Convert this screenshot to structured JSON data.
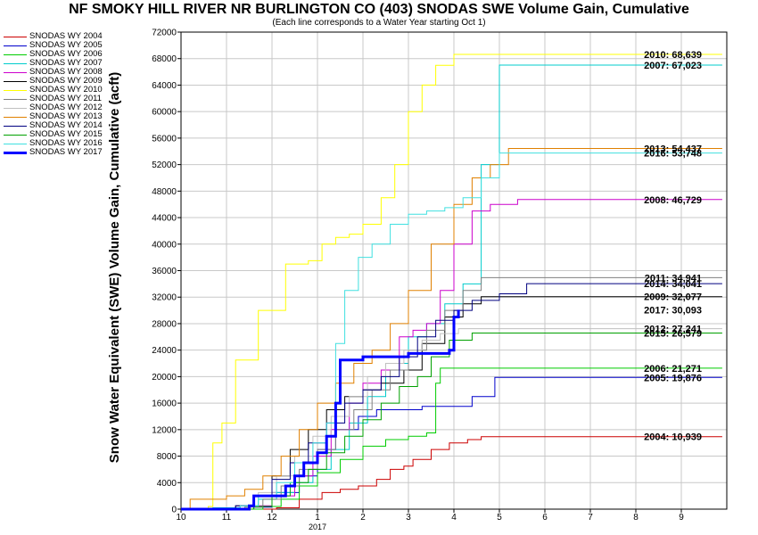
{
  "chart_data": {
    "type": "line",
    "title": "NF SMOKY HILL RIVER NR BURLINGTON CO (403) SNODAS SWE Volume Gain, Cumulative",
    "subtitle": "(Each line corresponds to a Water Year starting Oct 1)",
    "ylabel": "Snow Water Equivalent (SWE) Volume Gain, Cumulative (acft)",
    "xlabel": "",
    "ylim": [
      0,
      72000
    ],
    "yticks": [
      "0",
      "4000",
      "8000",
      "12000",
      "16000",
      "20000",
      "24000",
      "28000",
      "32000",
      "36000",
      "40000",
      "44000",
      "48000",
      "52000",
      "56000",
      "60000",
      "64000",
      "68000",
      "72000"
    ],
    "xlim": [
      0,
      12
    ],
    "xticks": [
      {
        "pos": 0,
        "label": "10"
      },
      {
        "pos": 1,
        "label": "11"
      },
      {
        "pos": 2,
        "label": "12"
      },
      {
        "pos": 3,
        "label": "1"
      },
      {
        "pos": 4,
        "label": "2"
      },
      {
        "pos": 5,
        "label": "3"
      },
      {
        "pos": 6,
        "label": "4"
      },
      {
        "pos": 7,
        "label": "5"
      },
      {
        "pos": 8,
        "label": "6"
      },
      {
        "pos": 9,
        "label": "7"
      },
      {
        "pos": 10,
        "label": "8"
      },
      {
        "pos": 11,
        "label": "9"
      }
    ],
    "year_label": {
      "pos": 3,
      "label": "2017"
    },
    "grid": true,
    "legend_position": "left",
    "series": [
      {
        "name": "SNODAS WY 2004",
        "color": "#cc0000",
        "width": 1,
        "end_label": "2004: 10,939",
        "x": [
          0,
          2.1,
          2.6,
          3.1,
          3.5,
          3.9,
          4.3,
          4.6,
          4.9,
          5.1,
          5.5,
          5.9,
          6.3,
          6.6,
          11.9
        ],
        "y": [
          0,
          200,
          1500,
          2500,
          3000,
          3500,
          4500,
          6000,
          6500,
          7500,
          9000,
          10000,
          10500,
          10939,
          10939
        ]
      },
      {
        "name": "SNODAS WY 2005",
        "color": "#0000cc",
        "width": 1,
        "end_label": "2005: 19,876",
        "x": [
          0,
          1.6,
          2.0,
          2.6,
          3.0,
          3.4,
          3.9,
          4.3,
          4.9,
          5.3,
          5.9,
          6.4,
          6.9,
          11.9
        ],
        "y": [
          0,
          300,
          2500,
          5000,
          9000,
          12000,
          14000,
          15000,
          15000,
          15500,
          15500,
          17000,
          19876,
          19876
        ]
      },
      {
        "name": "SNODAS WY 2006",
        "color": "#00cc00",
        "width": 1,
        "end_label": "2006: 21,271",
        "x": [
          0,
          1.8,
          2.2,
          2.6,
          3.0,
          3.5,
          4.0,
          4.5,
          5.0,
          5.4,
          5.6,
          5.7,
          11.9
        ],
        "y": [
          0,
          400,
          1500,
          3500,
          5500,
          7500,
          9500,
          10500,
          11000,
          11500,
          19000,
          21271,
          21271
        ]
      },
      {
        "name": "SNODAS WY 2007",
        "color": "#00cccc",
        "width": 1,
        "end_label": "2007: 67,023",
        "x": [
          0,
          0.7,
          1.3,
          1.7,
          2.1,
          2.5,
          2.9,
          3.3,
          3.7,
          4.1,
          4.5,
          5.0,
          5.4,
          5.8,
          6.2,
          6.6,
          7.0,
          11.9
        ],
        "y": [
          0,
          200,
          500,
          1500,
          2500,
          4000,
          6000,
          9000,
          13000,
          17000,
          22000,
          26000,
          28000,
          31000,
          34000,
          52000,
          67023,
          67023
        ]
      },
      {
        "name": "SNODAS WY 2008",
        "color": "#cc00cc",
        "width": 1,
        "end_label": "2008: 46,729",
        "x": [
          0,
          1.5,
          2.0,
          2.5,
          2.9,
          3.3,
          3.7,
          4.0,
          4.4,
          4.8,
          5.1,
          5.4,
          5.7,
          6.0,
          6.4,
          6.8,
          7.4,
          11.9
        ],
        "y": [
          0,
          500,
          2000,
          5000,
          8000,
          12000,
          16000,
          19000,
          21000,
          26000,
          27000,
          28000,
          33000,
          40000,
          45000,
          46000,
          46729,
          46729
        ]
      },
      {
        "name": "SNODAS WY 2009",
        "color": "#000000",
        "width": 1,
        "end_label": "2009: 32,077",
        "x": [
          0,
          1.2,
          1.6,
          2.0,
          2.4,
          2.8,
          3.2,
          3.6,
          4.0,
          4.4,
          4.9,
          5.3,
          5.8,
          6.2,
          6.6,
          11.9
        ],
        "y": [
          0,
          500,
          2000,
          5000,
          9000,
          12000,
          15000,
          17000,
          18000,
          19000,
          21000,
          25000,
          29000,
          31000,
          32077,
          32077
        ]
      },
      {
        "name": "SNODAS WY 2010",
        "color": "#ffff00",
        "width": 1,
        "end_label": "2010: 68,639",
        "x": [
          0,
          0.6,
          0.7,
          0.9,
          1.2,
          1.7,
          2.3,
          2.8,
          3.1,
          3.4,
          3.7,
          4.0,
          4.4,
          4.7,
          5.0,
          5.3,
          5.6,
          6.0,
          11.9
        ],
        "y": [
          0,
          400,
          10000,
          13000,
          22500,
          30000,
          37000,
          37500,
          40000,
          41000,
          41500,
          43000,
          47000,
          52000,
          60000,
          64000,
          67000,
          68639,
          68639
        ]
      },
      {
        "name": "SNODAS WY 2011",
        "color": "#808080",
        "width": 1,
        "end_label": "2011: 34,941",
        "x": [
          0,
          1.4,
          1.8,
          2.2,
          2.6,
          3.0,
          3.4,
          3.8,
          4.2,
          4.6,
          5.0,
          5.4,
          5.8,
          6.2,
          6.6,
          11.9
        ],
        "y": [
          0,
          300,
          1500,
          3500,
          6000,
          9000,
          12000,
          15000,
          18000,
          21000,
          24000,
          27000,
          30000,
          33000,
          34941,
          34941
        ]
      },
      {
        "name": "SNODAS WY 2012",
        "color": "#c0c0c0",
        "width": 1,
        "end_label": "2012: 27,241",
        "x": [
          0,
          1.3,
          1.7,
          2.1,
          2.5,
          2.9,
          3.3,
          3.7,
          4.1,
          4.5,
          4.9,
          5.3,
          5.7,
          6.1,
          11.9
        ],
        "y": [
          0,
          500,
          2500,
          5000,
          8000,
          11000,
          14000,
          17000,
          20000,
          22000,
          24000,
          25500,
          26500,
          27241,
          27241
        ]
      },
      {
        "name": "SNODAS WY 2013",
        "color": "#e08000",
        "width": 1,
        "end_label": "2013: 54,437",
        "x": [
          0,
          0.2,
          0.6,
          1.0,
          1.4,
          1.8,
          2.2,
          2.6,
          3.0,
          3.4,
          3.8,
          4.2,
          4.6,
          5.0,
          5.5,
          6.0,
          6.4,
          6.8,
          7.2,
          11.9
        ],
        "y": [
          0,
          1500,
          1500,
          2000,
          3000,
          5000,
          8000,
          12000,
          16000,
          19000,
          22000,
          24000,
          28000,
          33000,
          40000,
          46000,
          50000,
          52000,
          54437,
          54437
        ]
      },
      {
        "name": "SNODAS WY 2014",
        "color": "#000080",
        "width": 1,
        "end_label": "2014: 34,041",
        "x": [
          0,
          1.2,
          1.6,
          2.0,
          2.4,
          2.8,
          3.2,
          3.6,
          4.0,
          4.4,
          4.8,
          5.2,
          5.6,
          6.0,
          6.4,
          7.0,
          7.6,
          11.9
        ],
        "y": [
          0,
          500,
          2000,
          4500,
          7000,
          10000,
          13000,
          16000,
          18000,
          20000,
          23000,
          26000,
          28500,
          30000,
          31500,
          32500,
          34041,
          34041
        ]
      },
      {
        "name": "SNODAS WY 2015",
        "color": "#00a000",
        "width": 1,
        "end_label": "2015: 26,579",
        "x": [
          0,
          1.6,
          2.0,
          2.4,
          2.8,
          3.2,
          3.6,
          4.0,
          4.4,
          4.8,
          5.2,
          5.5,
          5.9,
          6.4,
          11.9
        ],
        "y": [
          0,
          400,
          2000,
          4000,
          6000,
          8500,
          11000,
          13500,
          16000,
          18500,
          20000,
          23000,
          25500,
          26579,
          26579
        ]
      },
      {
        "name": "SNODAS WY 2016",
        "color": "#40e0e0",
        "width": 1,
        "end_label": "2016: 53,748",
        "x": [
          0,
          1.3,
          1.7,
          2.1,
          2.5,
          2.9,
          3.2,
          3.4,
          3.6,
          3.9,
          4.2,
          4.6,
          5.0,
          5.4,
          5.8,
          6.2,
          6.6,
          7.0,
          11.9
        ],
        "y": [
          0,
          500,
          2000,
          4000,
          7000,
          10000,
          13000,
          25000,
          33000,
          38000,
          40000,
          43000,
          44500,
          45000,
          45500,
          47000,
          50000,
          53748,
          53748
        ]
      },
      {
        "name": "SNODAS WY 2017",
        "color": "#0000ff",
        "width": 3,
        "end_label": "2017: 30,093",
        "x": [
          0,
          1.5,
          1.6,
          2.0,
          2.3,
          2.5,
          2.7,
          3.0,
          3.2,
          3.4,
          3.5,
          4.0,
          4.5,
          5.0,
          5.1,
          5.9,
          6.0,
          6.1
        ],
        "y": [
          0,
          500,
          2000,
          2000,
          3500,
          5000,
          7000,
          8500,
          11000,
          16000,
          22500,
          23000,
          23000,
          23500,
          23500,
          24000,
          29000,
          30093
        ]
      }
    ]
  }
}
